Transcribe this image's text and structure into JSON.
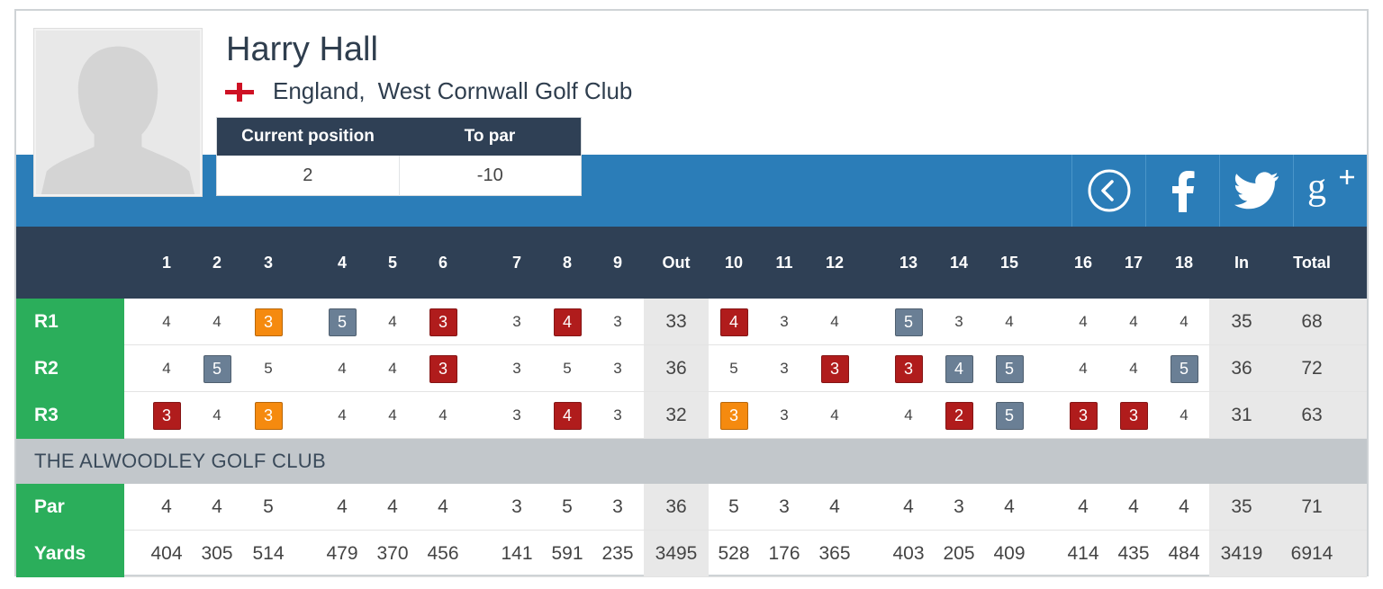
{
  "player": {
    "name": "Harry Hall",
    "country": "England,",
    "club": "West Cornwall Golf Club",
    "flag_icon": "england-flag-icon"
  },
  "position": {
    "headers": [
      "Current position",
      "To par"
    ],
    "values": [
      "2",
      "-10"
    ]
  },
  "social": [
    "back-icon",
    "facebook-icon",
    "twitter-icon",
    "google-plus-icon"
  ],
  "colors": {
    "band": "#2b7db8",
    "header": "#2f4055",
    "label_green": "#2bae5b",
    "birdie": "#b01c1c",
    "bogey": "#6a7f95",
    "eagle": "#f58a0f"
  },
  "scorecard": {
    "columns": [
      "1",
      "2",
      "3",
      "4",
      "5",
      "6",
      "7",
      "8",
      "9",
      "Out",
      "10",
      "11",
      "12",
      "13",
      "14",
      "15",
      "16",
      "17",
      "18",
      "In",
      "Total"
    ],
    "rounds": [
      {
        "label": "R1",
        "scores": [
          "4",
          "4",
          "3",
          "5",
          "4",
          "3",
          "3",
          "4",
          "3",
          "33",
          "4",
          "3",
          "4",
          "5",
          "3",
          "4",
          "4",
          "4",
          "4",
          "35",
          "68"
        ],
        "marks": [
          "",
          "",
          "eagle",
          "bogey",
          "",
          "birdie",
          "",
          "birdie",
          "",
          "",
          "birdie",
          "",
          "",
          "bogey",
          "",
          "",
          "",
          "",
          "",
          "",
          ""
        ]
      },
      {
        "label": "R2",
        "scores": [
          "4",
          "5",
          "5",
          "4",
          "4",
          "3",
          "3",
          "5",
          "3",
          "36",
          "5",
          "3",
          "3",
          "3",
          "4",
          "5",
          "4",
          "4",
          "5",
          "36",
          "72"
        ],
        "marks": [
          "",
          "bogey",
          "",
          "",
          "",
          "birdie",
          "",
          "",
          "",
          "",
          "",
          "",
          "birdie",
          "birdie",
          "bogey",
          "bogey",
          "",
          "",
          "bogey",
          "",
          ""
        ]
      },
      {
        "label": "R3",
        "scores": [
          "3",
          "4",
          "3",
          "4",
          "4",
          "4",
          "3",
          "4",
          "3",
          "32",
          "3",
          "3",
          "4",
          "4",
          "2",
          "5",
          "3",
          "3",
          "4",
          "31",
          "63"
        ],
        "marks": [
          "birdie",
          "",
          "eagle",
          "",
          "",
          "",
          "",
          "birdie",
          "",
          "",
          "eagle",
          "",
          "",
          "",
          "birdie",
          "bogey",
          "birdie",
          "birdie",
          "",
          "",
          ""
        ]
      }
    ],
    "course_name": "THE ALWOODLEY GOLF CLUB",
    "par": {
      "label": "Par",
      "values": [
        "4",
        "4",
        "5",
        "4",
        "4",
        "4",
        "3",
        "5",
        "3",
        "36",
        "5",
        "3",
        "4",
        "4",
        "3",
        "4",
        "4",
        "4",
        "4",
        "35",
        "71"
      ]
    },
    "yards": {
      "label": "Yards",
      "values": [
        "404",
        "305",
        "514",
        "479",
        "370",
        "456",
        "141",
        "591",
        "235",
        "3495",
        "528",
        "176",
        "365",
        "403",
        "205",
        "409",
        "414",
        "435",
        "484",
        "3419",
        "6914"
      ]
    }
  }
}
